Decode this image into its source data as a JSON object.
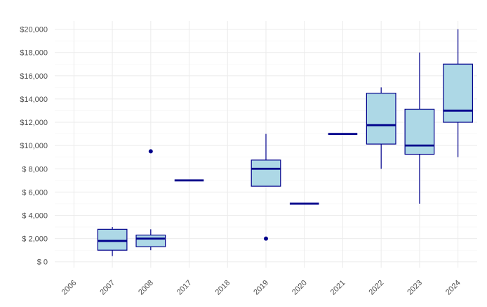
{
  "chart_data": {
    "type": "boxplot",
    "title": "",
    "xlabel": "",
    "ylabel": "",
    "categories": [
      "2006",
      "2007",
      "2008",
      "2017",
      "2018",
      "2019",
      "2020",
      "2021",
      "2022",
      "2023",
      "2024"
    ],
    "ylim": [
      -500,
      20700
    ],
    "y_ticks": [
      {
        "value": 0,
        "label": "$ 0"
      },
      {
        "value": 2000,
        "label": "$ 2,000"
      },
      {
        "value": 4000,
        "label": "$ 4,000"
      },
      {
        "value": 6000,
        "label": "$ 6,000"
      },
      {
        "value": 8000,
        "label": "$ 8,000"
      },
      {
        "value": 10000,
        "label": "$10,000"
      },
      {
        "value": 12000,
        "label": "$12,000"
      },
      {
        "value": 14000,
        "label": "$14,000"
      },
      {
        "value": 16000,
        "label": "$16,000"
      },
      {
        "value": 18000,
        "label": "$18,000"
      },
      {
        "value": 20000,
        "label": "$20,000"
      }
    ],
    "grid": true,
    "box_fill": "#add8e6",
    "box_stroke": "#00008b",
    "boxes": [
      {
        "category": "2007",
        "whisker_low": 500,
        "q1": 1000,
        "median": 1800,
        "q3": 2800,
        "whisker_high": 3000,
        "outliers": []
      },
      {
        "category": "2008",
        "whisker_low": 1000,
        "q1": 1300,
        "median": 2000,
        "q3": 2300,
        "whisker_high": 2800,
        "outliers": [
          9500
        ]
      },
      {
        "category": "2017",
        "whisker_low": 7000,
        "q1": 7000,
        "median": 7000,
        "q3": 7000,
        "whisker_high": 7000,
        "outliers": []
      },
      {
        "category": "2019",
        "whisker_low": 6500,
        "q1": 6500,
        "median": 8000,
        "q3": 8750,
        "whisker_high": 11000,
        "outliers": [
          2000
        ]
      },
      {
        "category": "2020",
        "whisker_low": 5000,
        "q1": 5000,
        "median": 5000,
        "q3": 5000,
        "whisker_high": 5000,
        "outliers": []
      },
      {
        "category": "2021",
        "whisker_low": 11000,
        "q1": 11000,
        "median": 11000,
        "q3": 11000,
        "whisker_high": 11000,
        "outliers": []
      },
      {
        "category": "2022",
        "whisker_low": 8000,
        "q1": 10125,
        "median": 11750,
        "q3": 14500,
        "whisker_high": 15000,
        "outliers": []
      },
      {
        "category": "2023",
        "whisker_low": 5000,
        "q1": 9250,
        "median": 10000,
        "q3": 13125,
        "whisker_high": 18000,
        "outliers": []
      },
      {
        "category": "2024",
        "whisker_low": 9000,
        "q1": 12000,
        "median": 13000,
        "q3": 17000,
        "whisker_high": 20000,
        "outliers": []
      }
    ]
  }
}
